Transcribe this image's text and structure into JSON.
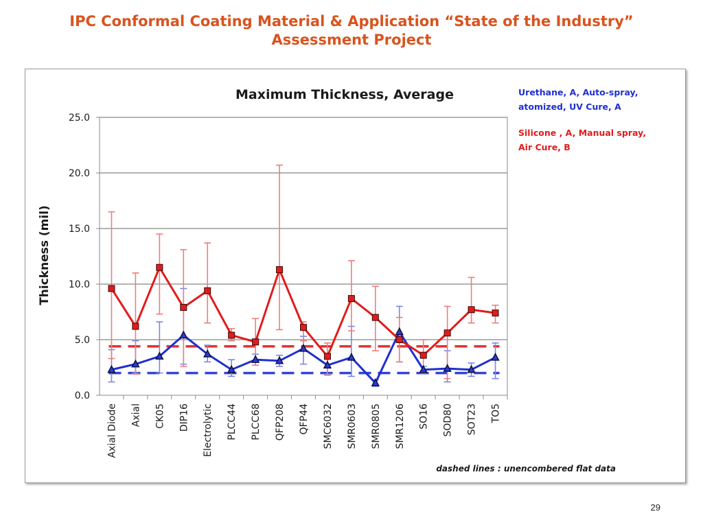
{
  "slide": {
    "title_line1": "IPC Conformal Coating Material & Application “State of the Industry”",
    "title_line2": "Assessment Project",
    "page_number": "29"
  },
  "chart_data": {
    "type": "line",
    "title": "Maximum Thickness, Average",
    "ylabel": "Thickness (mil)",
    "xlabel": "",
    "ylim": [
      0,
      25
    ],
    "yticks": [
      "0.0",
      "5.0",
      "10.0",
      "15.0",
      "20.0",
      "25.0"
    ],
    "grid": true,
    "categories": [
      "Axial Diode",
      "Axial",
      "CK05",
      "DIP16",
      "Electrolytic",
      "PLCC44",
      "PLCC68",
      "QFP208",
      "QFP44",
      "SMC6032",
      "SMR0603",
      "SMR0805",
      "SMR1206",
      "SO16",
      "SOD80",
      "SOT23",
      "TO5"
    ],
    "legend_position": "top-right",
    "series": [
      {
        "name": "Urethane, A, Auto-spray, atomized, UV Cure, A",
        "color": "#1f2fd1",
        "marker": "triangle",
        "values": [
          2.3,
          2.8,
          3.5,
          5.4,
          3.7,
          2.3,
          3.2,
          3.1,
          4.2,
          2.7,
          3.4,
          1.1,
          5.7,
          2.3,
          2.4,
          2.3,
          3.4
        ],
        "err_low": [
          1.2,
          2.0,
          2.0,
          2.8,
          3.0,
          1.7,
          2.7,
          2.6,
          2.8,
          1.9,
          1.7,
          0.8,
          3.0,
          2.0,
          1.2,
          1.7,
          1.5
        ],
        "err_high": [
          4.1,
          4.9,
          6.6,
          9.6,
          4.5,
          3.2,
          3.7,
          3.6,
          5.3,
          3.7,
          6.2,
          1.4,
          8.0,
          2.6,
          4.0,
          2.9,
          4.7
        ],
        "flat_reference": 2.0
      },
      {
        "name": "Silicone , A, Manual spray, Air Cure, B",
        "color": "#e21b1b",
        "marker": "square",
        "values": [
          9.6,
          6.2,
          11.5,
          7.9,
          9.4,
          5.4,
          4.8,
          11.3,
          6.1,
          3.5,
          8.7,
          7.0,
          5.0,
          3.6,
          5.6,
          7.7,
          7.4
        ],
        "err_low": [
          3.3,
          1.9,
          7.3,
          2.6,
          6.5,
          4.9,
          2.7,
          5.9,
          4.9,
          1.8,
          5.8,
          4.0,
          3.0,
          2.2,
          1.5,
          6.5,
          6.5
        ],
        "err_high": [
          16.5,
          11.0,
          14.5,
          13.1,
          13.7,
          6.0,
          6.9,
          20.7,
          6.6,
          4.7,
          12.1,
          9.8,
          7.0,
          5.0,
          8.0,
          10.6,
          8.1
        ],
        "flat_reference": 4.4
      }
    ],
    "annotation": "dashed lines : unencombered flat data"
  },
  "legend": {
    "urethane_line1": "Urethane, A, Auto-spray,",
    "urethane_line2": "atomized, UV Cure, A",
    "silicone_line1": "Silicone , A, Manual spray,",
    "silicone_line2": "Air Cure, B"
  }
}
